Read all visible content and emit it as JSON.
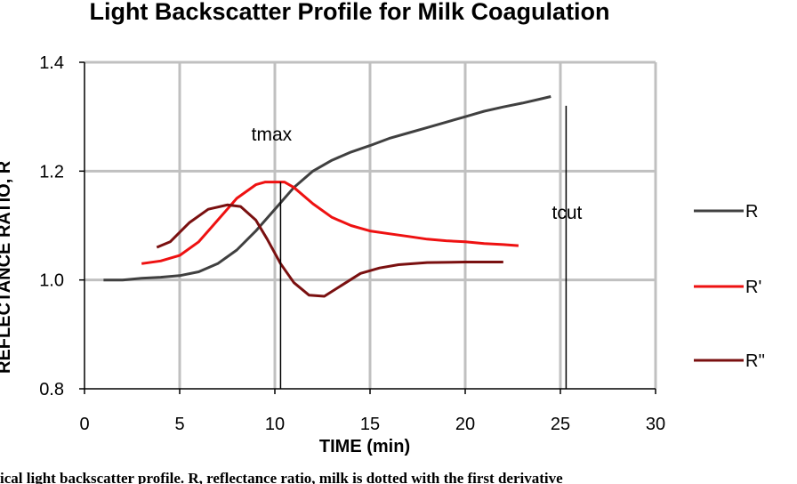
{
  "chart_data": {
    "type": "line",
    "title": "Light Backscatter Profile for Milk Coagulation",
    "xlabel": "TIME (min)",
    "ylabel": "REFLECTANCE RATIO, R",
    "xlim": [
      0,
      30
    ],
    "ylim": [
      0.8,
      1.4
    ],
    "x_ticks": [
      "0",
      "5",
      "10",
      "15",
      "20",
      "25",
      "30"
    ],
    "y_ticks": [
      "0.8",
      "1.0",
      "1.2",
      "1.4"
    ],
    "grid": true,
    "legend_position": "right",
    "series": [
      {
        "name": "R",
        "color": "#404040",
        "x": [
          1,
          2,
          3,
          4,
          5,
          6,
          7,
          8,
          9,
          10,
          11,
          12,
          13,
          14,
          15,
          16,
          17,
          18,
          19,
          20,
          21,
          22,
          23,
          24,
          24.5
        ],
        "y": [
          1.0,
          1.0,
          1.003,
          1.005,
          1.008,
          1.015,
          1.03,
          1.055,
          1.09,
          1.13,
          1.17,
          1.2,
          1.22,
          1.235,
          1.247,
          1.26,
          1.27,
          1.28,
          1.29,
          1.3,
          1.31,
          1.318,
          1.325,
          1.333,
          1.337
        ]
      },
      {
        "name": "R'",
        "color": "#ee1111",
        "x": [
          3,
          4,
          5,
          6,
          7,
          8,
          9,
          9.5,
          10.5,
          11,
          12,
          13,
          14,
          15,
          16,
          17,
          18,
          19,
          20,
          21,
          22,
          22.8
        ],
        "y": [
          1.03,
          1.035,
          1.045,
          1.07,
          1.11,
          1.15,
          1.175,
          1.18,
          1.18,
          1.17,
          1.14,
          1.115,
          1.1,
          1.09,
          1.085,
          1.08,
          1.075,
          1.072,
          1.07,
          1.067,
          1.065,
          1.063
        ]
      },
      {
        "name": "R''",
        "color": "#7a1010",
        "x": [
          3.8,
          4.5,
          5.5,
          6.5,
          7.5,
          8.2,
          9,
          9.6,
          10.3,
          11,
          11.8,
          12.6,
          13.5,
          14.5,
          15.5,
          16.5,
          18,
          20,
          22
        ],
        "y": [
          1.06,
          1.07,
          1.105,
          1.13,
          1.138,
          1.135,
          1.11,
          1.075,
          1.03,
          0.995,
          0.972,
          0.97,
          0.99,
          1.012,
          1.022,
          1.028,
          1.032,
          1.033,
          1.033
        ]
      }
    ],
    "annotations": [
      {
        "text": "tmax",
        "x": 10.3,
        "y_top": 1.18
      },
      {
        "text": "tcut",
        "x": 25.3,
        "y_top": 1.32
      }
    ]
  },
  "caption_partial": "ical light backscatter profile. R, reflectance ratio, milk is dotted with the first derivative"
}
